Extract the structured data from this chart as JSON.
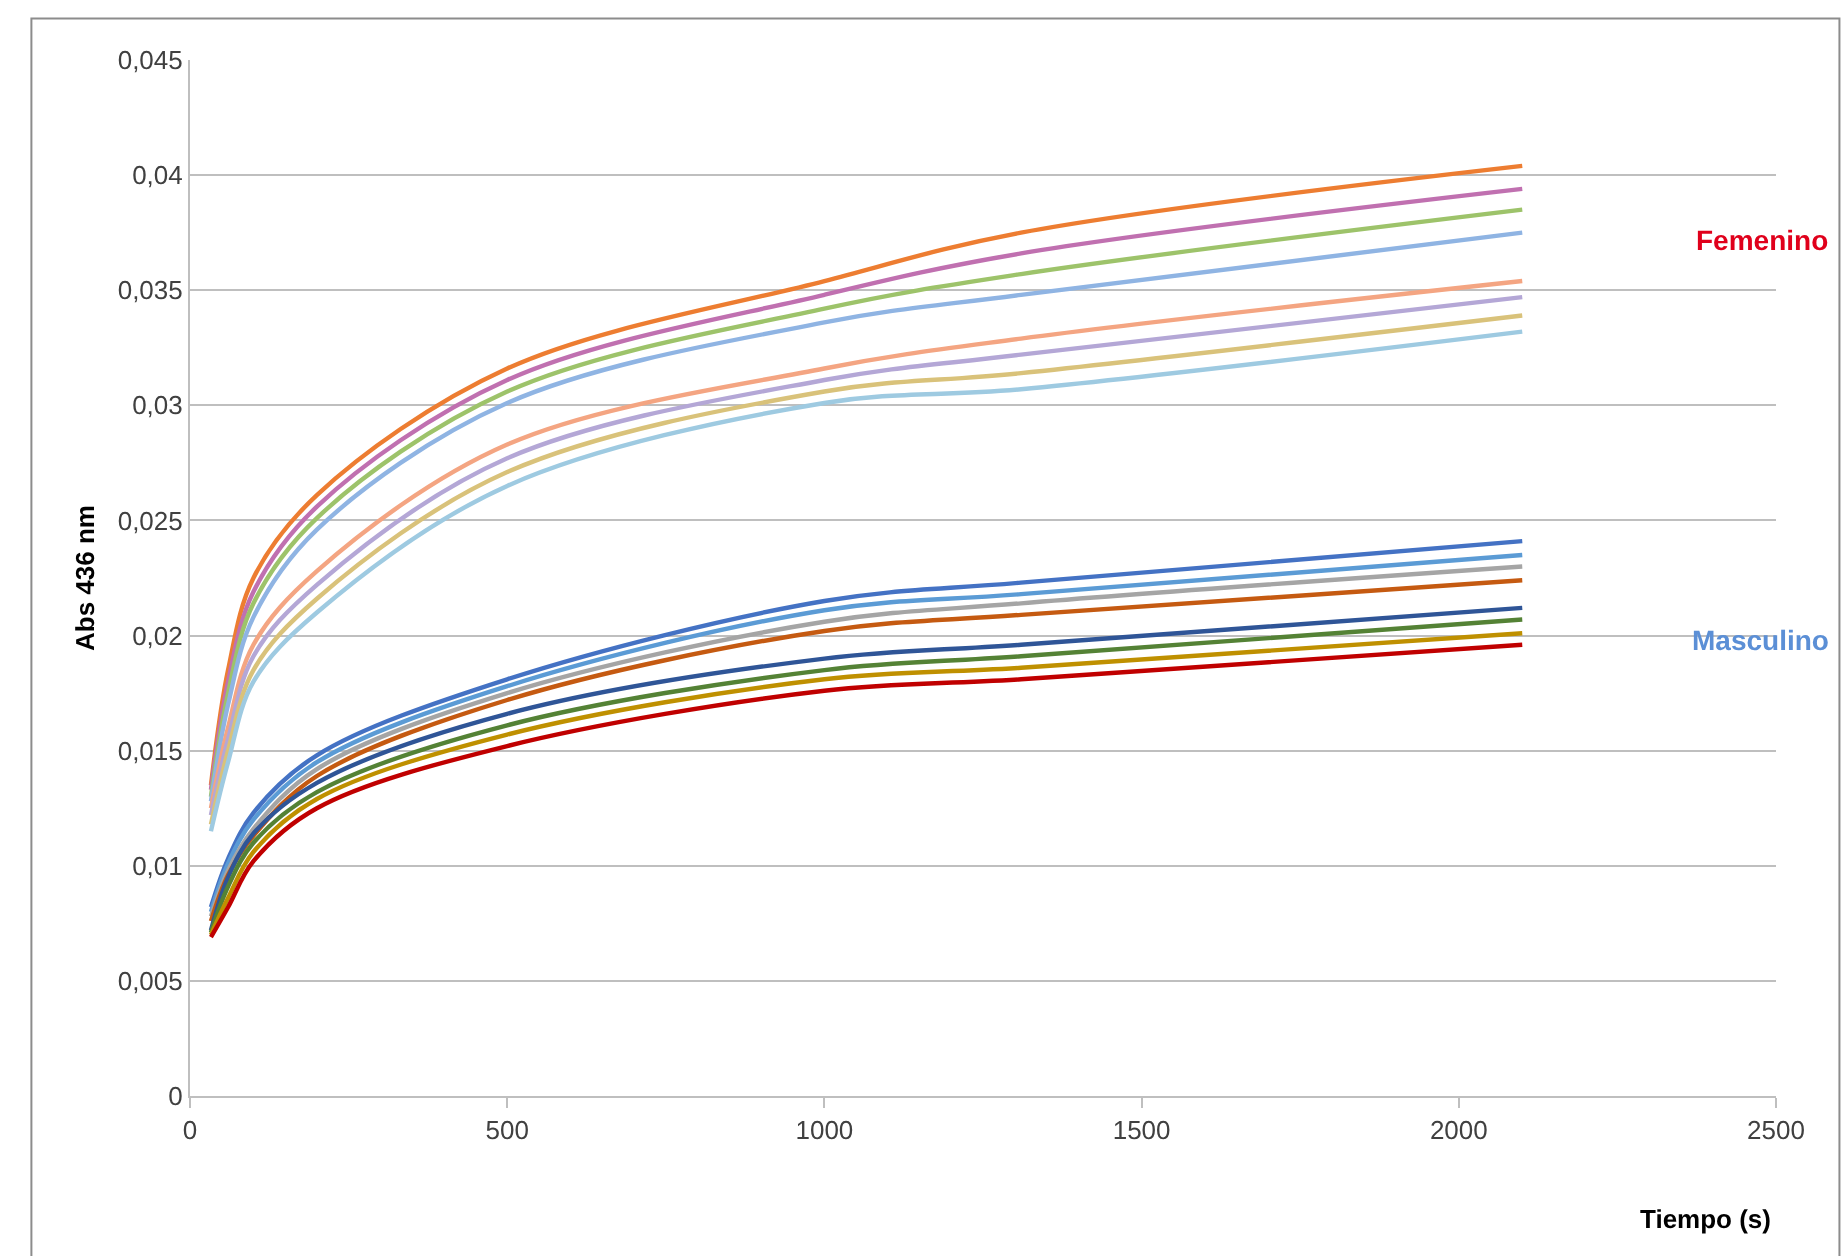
{
  "chart_data": {
    "type": "line",
    "xlabel": "Tiempo (s)",
    "ylabel": "Abs 436 nm",
    "x": [
      33,
      60,
      100,
      200,
      500,
      1000,
      1310,
      2100
    ],
    "xlim": [
      0,
      2500
    ],
    "xticks": [
      0,
      500,
      1000,
      1500,
      2000,
      2500
    ],
    "ylim": [
      0,
      0.045
    ],
    "yticks": [
      0,
      {
        "value": 0.005,
        "label": "0,005"
      },
      {
        "value": 0.01,
        "label": "0,01"
      },
      {
        "value": 0.015,
        "label": "0,015"
      },
      {
        "value": 0.02,
        "label": "0,02"
      },
      {
        "value": 0.025,
        "label": "0,025"
      },
      {
        "value": 0.03,
        "label": "0,03"
      },
      {
        "value": 0.035,
        "label": "0,035"
      },
      {
        "value": 0.04,
        "label": "0,04"
      },
      {
        "value": 0.045,
        "label": "0,045"
      }
    ],
    "grid": "y",
    "marker": "none",
    "line_style": "solid",
    "series": [
      {
        "color": "#ed7d31",
        "values": [
          0.0135,
          0.0185,
          0.0225,
          0.0261,
          0.0316,
          0.0354,
          0.0375,
          0.0404
        ]
      },
      {
        "color": "#c070b0",
        "values": [
          0.0133,
          0.018,
          0.0219,
          0.0256,
          0.0311,
          0.0348,
          0.0366,
          0.0394
        ]
      },
      {
        "color": "#9dc36a",
        "values": [
          0.013,
          0.0175,
          0.0214,
          0.0251,
          0.0306,
          0.0342,
          0.0357,
          0.0385
        ]
      },
      {
        "color": "#8fb4e3",
        "values": [
          0.0128,
          0.017,
          0.0208,
          0.0246,
          0.0301,
          0.0336,
          0.0348,
          0.0375
        ]
      },
      {
        "color": "#f4a582",
        "values": [
          0.0125,
          0.016,
          0.0196,
          0.0228,
          0.0283,
          0.0316,
          0.0329,
          0.0354
        ]
      },
      {
        "color": "#b4a7d6",
        "values": [
          0.0122,
          0.0155,
          0.0191,
          0.0222,
          0.0277,
          0.0311,
          0.0322,
          0.0347
        ]
      },
      {
        "color": "#d9c27a",
        "values": [
          0.0118,
          0.015,
          0.0185,
          0.0216,
          0.0271,
          0.0306,
          0.0314,
          0.0339
        ]
      },
      {
        "color": "#9ecae1",
        "values": [
          0.0115,
          0.0145,
          0.018,
          0.021,
          0.0265,
          0.0301,
          0.0307,
          0.0332
        ]
      },
      {
        "color": "#4472c4",
        "values": [
          0.0082,
          0.0103,
          0.0123,
          0.0148,
          0.0181,
          0.0215,
          0.0223,
          0.0241
        ]
      },
      {
        "color": "#5b9bd5",
        "values": [
          0.008,
          0.0101,
          0.012,
          0.0145,
          0.0178,
          0.0211,
          0.0218,
          0.0235
        ]
      },
      {
        "color": "#a5a5a5",
        "values": [
          0.0078,
          0.0098,
          0.0116,
          0.0142,
          0.0175,
          0.0206,
          0.0214,
          0.023
        ]
      },
      {
        "color": "#c55a11",
        "values": [
          0.0076,
          0.0096,
          0.0113,
          0.0139,
          0.0172,
          0.0202,
          0.0209,
          0.0224
        ]
      },
      {
        "color": "#2f5597",
        "values": [
          0.0072,
          0.0095,
          0.0114,
          0.0136,
          0.0166,
          0.019,
          0.0196,
          0.0212
        ]
      },
      {
        "color": "#548235",
        "values": [
          0.0071,
          0.0091,
          0.011,
          0.0132,
          0.0161,
          0.0185,
          0.0191,
          0.0207
        ]
      },
      {
        "color": "#bf9000",
        "values": [
          0.007,
          0.0086,
          0.0106,
          0.0129,
          0.0157,
          0.0181,
          0.0186,
          0.0201
        ]
      },
      {
        "color": "#c00000",
        "values": [
          0.0069,
          0.0082,
          0.0102,
          0.0125,
          0.0152,
          0.0176,
          0.0181,
          0.0196
        ]
      }
    ],
    "annotations": [
      "Femenino",
      "Masculino"
    ]
  }
}
